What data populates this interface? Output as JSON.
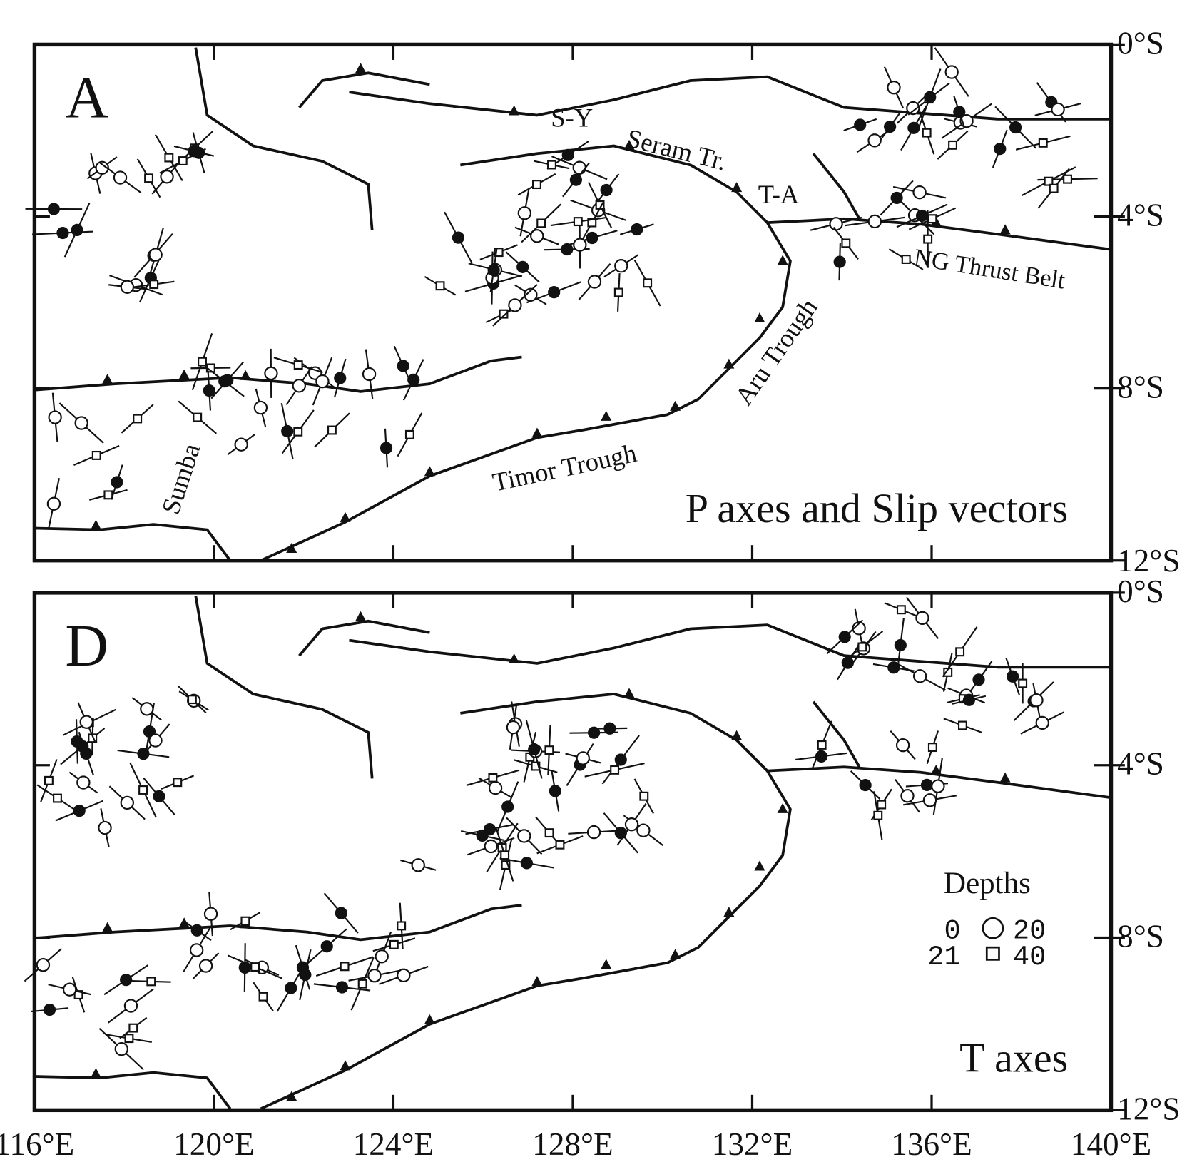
{
  "axes": {
    "lonlim": [
      116,
      140
    ],
    "latlim": [
      0,
      12
    ],
    "lon_ticks": [
      {
        "value": 116,
        "label": "116°E"
      },
      {
        "value": 120,
        "label": "120°E"
      },
      {
        "value": 124,
        "label": "124°E"
      },
      {
        "value": 128,
        "label": "128°E"
      },
      {
        "value": 132,
        "label": "132°E"
      },
      {
        "value": 136,
        "label": "136°E"
      },
      {
        "value": 140,
        "label": "140°E"
      }
    ],
    "lat_ticks": [
      {
        "value": 0,
        "label": "0°S"
      },
      {
        "value": 4,
        "label": "4°S"
      },
      {
        "value": 8,
        "label": "8°S"
      },
      {
        "value": 12,
        "label": "12°S"
      }
    ]
  },
  "panels": [
    {
      "label": "A",
      "title": "P axes and Slip vectors",
      "annotations": [
        "S-Y",
        "Seram Tr.",
        "T-A",
        "NG Thrust Belt",
        "Aru Trough",
        "Timor Trough",
        "Sumba"
      ]
    },
    {
      "label": "D",
      "title": "T axes",
      "legend": {
        "title": "Depths",
        "rows": [
          [
            "0",
            "20"
          ],
          [
            "21",
            "40"
          ]
        ]
      }
    }
  ]
}
